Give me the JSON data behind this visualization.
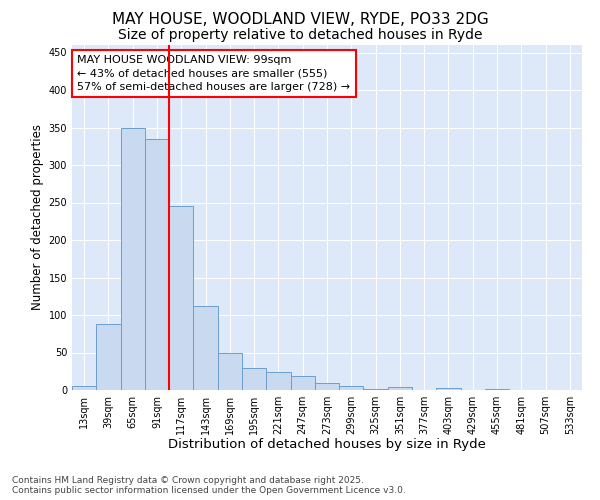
{
  "title": "MAY HOUSE, WOODLAND VIEW, RYDE, PO33 2DG",
  "subtitle": "Size of property relative to detached houses in Ryde",
  "xlabel": "Distribution of detached houses by size in Ryde",
  "ylabel": "Number of detached properties",
  "categories": [
    "13sqm",
    "39sqm",
    "65sqm",
    "91sqm",
    "117sqm",
    "143sqm",
    "169sqm",
    "195sqm",
    "221sqm",
    "247sqm",
    "273sqm",
    "299sqm",
    "325sqm",
    "351sqm",
    "377sqm",
    "403sqm",
    "429sqm",
    "455sqm",
    "481sqm",
    "507sqm",
    "533sqm"
  ],
  "values": [
    5,
    88,
    350,
    335,
    245,
    112,
    49,
    30,
    24,
    19,
    9,
    5,
    2,
    4,
    0,
    3,
    0,
    1,
    0,
    0,
    0
  ],
  "bar_color": "#c8d9f0",
  "bar_edge_color": "#6a9fd0",
  "red_line_x": 3.5,
  "annotation_line1": "MAY HOUSE WOODLAND VIEW: 99sqm",
  "annotation_line2": "← 43% of detached houses are smaller (555)",
  "annotation_line3": "57% of semi-detached houses are larger (728) →",
  "annotation_box_color": "white",
  "annotation_box_edge_color": "red",
  "red_line_color": "red",
  "ylim": [
    0,
    460
  ],
  "yticks": [
    0,
    50,
    100,
    150,
    200,
    250,
    300,
    350,
    400,
    450
  ],
  "background_color": "#dde8f8",
  "footer_text": "Contains HM Land Registry data © Crown copyright and database right 2025.\nContains public sector information licensed under the Open Government Licence v3.0.",
  "title_fontsize": 11,
  "subtitle_fontsize": 10,
  "xlabel_fontsize": 9.5,
  "ylabel_fontsize": 8.5,
  "annotation_fontsize": 8,
  "tick_fontsize": 7,
  "footer_fontsize": 6.5
}
